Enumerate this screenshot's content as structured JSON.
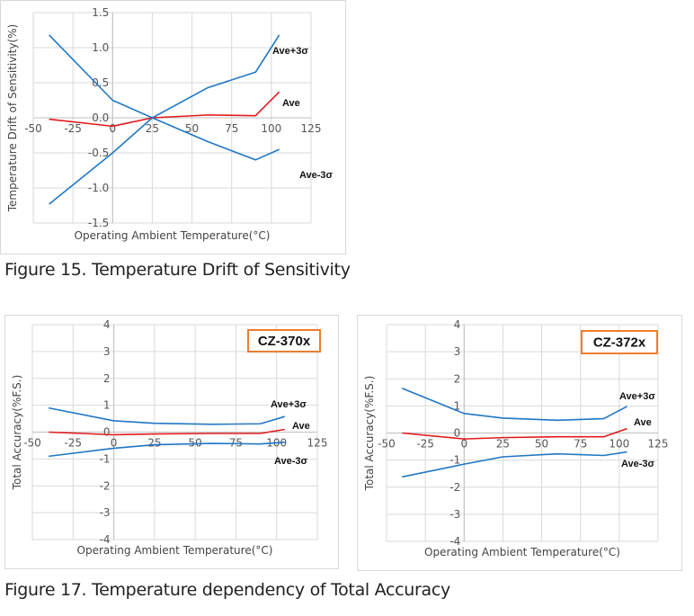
{
  "captions": {
    "fig15": "Figure 15. Temperature Drift of Sensitivity",
    "fig17": "Figure 17. Temperature dependency of Total Accuracy"
  },
  "colors": {
    "ave": "#e31a1c",
    "sigma": "#1f77c4",
    "grid": "#d9d9d9",
    "axis": "#bfbfbf",
    "badge_border": "#ed7d31"
  },
  "chart_data": [
    {
      "type": "line",
      "xlabel": "Operating Ambient Temperature(°C)",
      "ylabel": "Temperature Drift of Sensitivity(%)",
      "xlim": [
        -50,
        125
      ],
      "ylim": [
        -1.5,
        1.5
      ],
      "xticks": [
        "-50",
        "-25",
        "0",
        "25",
        "50",
        "75",
        "100",
        "125"
      ],
      "yticks": [
        "-1.5",
        "-1.0",
        "-0.5",
        "0.0",
        "0.5",
        "1.0",
        "1.5"
      ],
      "grid": true,
      "series": [
        {
          "name": "Ave+3σ",
          "x": [
            -40,
            0,
            25,
            60,
            90,
            105
          ],
          "y": [
            1.18,
            0.25,
            0.0,
            0.43,
            0.65,
            1.18
          ],
          "color": "#1f77c4"
        },
        {
          "name": "Ave",
          "x": [
            -40,
            0,
            25,
            60,
            90,
            105
          ],
          "y": [
            -0.02,
            -0.12,
            0.0,
            0.04,
            0.03,
            0.37
          ],
          "color": "#e31a1c"
        },
        {
          "name": "Ave-3σ",
          "x": [
            -40,
            0,
            25,
            60,
            90,
            105
          ],
          "y": [
            -1.23,
            -0.5,
            0.0,
            -0.34,
            -0.6,
            -0.45
          ],
          "color": "#1f77c4"
        }
      ]
    },
    {
      "type": "line",
      "model": "CZ-370x",
      "xlabel": "Operating Ambient Temperature(°C)",
      "ylabel": "Total Accuracy(%F.S.)",
      "xlim": [
        -50,
        125
      ],
      "ylim": [
        -4,
        4
      ],
      "xticks": [
        "-50",
        "-25",
        "0",
        "25",
        "50",
        "75",
        "100",
        "125"
      ],
      "yticks": [
        "-4",
        "-3",
        "-2",
        "-1",
        "0",
        "1",
        "2",
        "3",
        "4"
      ],
      "grid": true,
      "series": [
        {
          "name": "Ave+3σ",
          "x": [
            -40,
            0,
            25,
            60,
            90,
            105
          ],
          "y": [
            0.9,
            0.42,
            0.33,
            0.29,
            0.31,
            0.58
          ],
          "color": "#1f77c4"
        },
        {
          "name": "Ave",
          "x": [
            -40,
            0,
            25,
            60,
            90,
            105
          ],
          "y": [
            0.0,
            -0.1,
            -0.07,
            -0.05,
            -0.05,
            0.1
          ],
          "color": "#e31a1c"
        },
        {
          "name": "Ave-3σ",
          "x": [
            -40,
            0,
            25,
            60,
            90,
            105
          ],
          "y": [
            -0.9,
            -0.6,
            -0.47,
            -0.42,
            -0.44,
            -0.38
          ],
          "color": "#1f77c4"
        }
      ]
    },
    {
      "type": "line",
      "model": "CZ-372x",
      "xlabel": "Operating Ambient Temperature(°C)",
      "ylabel": "Total Accuracy(%F.S.)",
      "xlim": [
        -50,
        125
      ],
      "ylim": [
        -4,
        4
      ],
      "xticks": [
        "-50",
        "-25",
        "0",
        "25",
        "50",
        "75",
        "100",
        "125"
      ],
      "yticks": [
        "-4",
        "-3",
        "-2",
        "-1",
        "0",
        "1",
        "2",
        "3",
        "4"
      ],
      "grid": true,
      "series": [
        {
          "name": "Ave+3σ",
          "x": [
            -40,
            0,
            25,
            60,
            90,
            105
          ],
          "y": [
            1.65,
            0.72,
            0.55,
            0.47,
            0.53,
            0.98
          ],
          "color": "#1f77c4"
        },
        {
          "name": "Ave",
          "x": [
            -40,
            0,
            25,
            60,
            90,
            105
          ],
          "y": [
            0.0,
            -0.22,
            -0.17,
            -0.14,
            -0.14,
            0.16
          ],
          "color": "#e31a1c"
        },
        {
          "name": "Ave-3σ",
          "x": [
            -40,
            0,
            25,
            60,
            90,
            105
          ],
          "y": [
            -1.62,
            -1.15,
            -0.88,
            -0.77,
            -0.83,
            -0.7
          ],
          "color": "#1f77c4"
        }
      ]
    }
  ]
}
